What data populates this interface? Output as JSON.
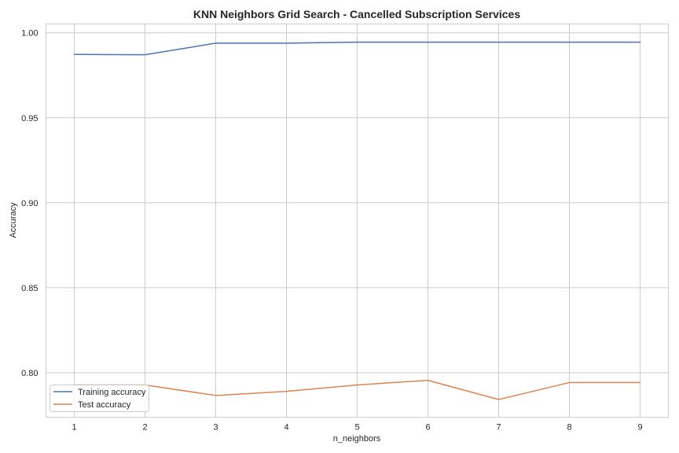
{
  "chart_data": {
    "type": "line",
    "title": "KNN Neighbors Grid Search - Cancelled Subscription Services",
    "xlabel": "n_neighbors",
    "ylabel": "Accuracy",
    "x": [
      1,
      2,
      3,
      4,
      5,
      6,
      7,
      8,
      9
    ],
    "xticks": [
      "1",
      "2",
      "3",
      "4",
      "5",
      "6",
      "7",
      "8",
      "9"
    ],
    "yticks": [
      "0.80",
      "0.85",
      "0.90",
      "0.95",
      "1.00"
    ],
    "ytick_values": [
      0.8,
      0.85,
      0.9,
      0.95,
      1.0
    ],
    "xlim": [
      0.6,
      9.4
    ],
    "ylim": [
      0.7738,
      1.0052
    ],
    "grid": true,
    "legend_position": "lower-left",
    "series": [
      {
        "name": "Training accuracy",
        "color": "#4c72b0",
        "values": [
          0.9873,
          0.9871,
          0.9939,
          0.9939,
          0.9945,
          0.9945,
          0.9945,
          0.9945,
          0.9945
        ]
      },
      {
        "name": "Test accuracy",
        "color": "#dd8452",
        "values": [
          0.7928,
          0.7928,
          0.7866,
          0.789,
          0.7928,
          0.7955,
          0.7842,
          0.7942,
          0.7942
        ]
      }
    ]
  }
}
